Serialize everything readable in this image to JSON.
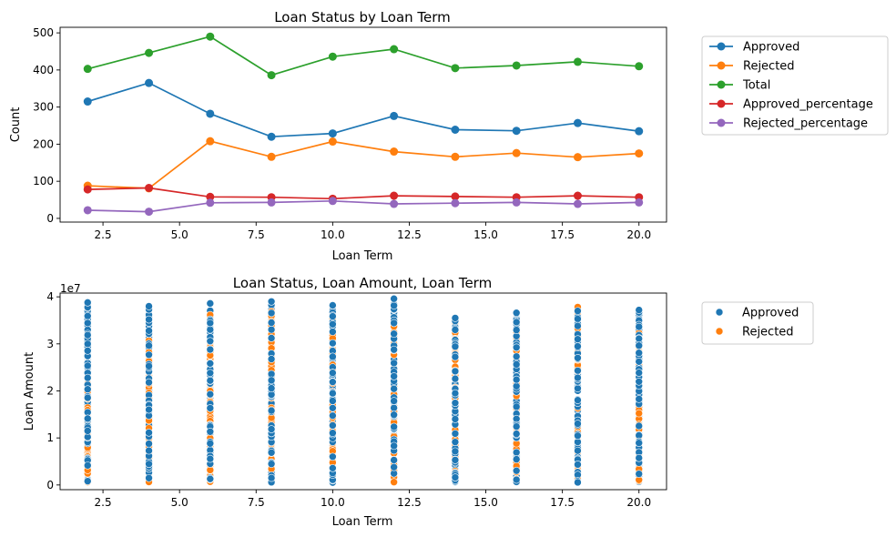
{
  "chart_data": [
    {
      "type": "line",
      "title": "Loan Status by Loan Term",
      "xlabel": "Loan Term",
      "ylabel": "Count",
      "xlim": [
        1.1,
        20.9
      ],
      "ylim": [
        -10,
        515
      ],
      "x_ticks": [
        2.5,
        5.0,
        7.5,
        10.0,
        12.5,
        15.0,
        17.5,
        20.0
      ],
      "x_tick_labels": [
        "2.5",
        "5.0",
        "7.5",
        "10.0",
        "12.5",
        "15.0",
        "17.5",
        "20.0"
      ],
      "y_ticks": [
        0,
        100,
        200,
        300,
        400,
        500
      ],
      "y_tick_labels": [
        "0",
        "100",
        "200",
        "300",
        "400",
        "500"
      ],
      "legend_position": "outside-right",
      "x": [
        2,
        4,
        6,
        8,
        10,
        12,
        14,
        16,
        18,
        20
      ],
      "series": [
        {
          "name": " Approved",
          "color": "#1f77b4",
          "values": [
            315,
            365,
            282,
            220,
            229,
            276,
            239,
            236,
            257,
            235
          ]
        },
        {
          "name": " Rejected",
          "color": "#ff7f0e",
          "values": [
            88,
            81,
            208,
            166,
            207,
            180,
            166,
            176,
            165,
            175
          ]
        },
        {
          "name": "Total",
          "color": "#2ca02c",
          "values": [
            403,
            446,
            490,
            386,
            436,
            456,
            405,
            412,
            422,
            410
          ]
        },
        {
          "name": "Approved_percentage",
          "color": "#d62728",
          "values": [
            78,
            82,
            58,
            57,
            53,
            61,
            59,
            57,
            61,
            57
          ]
        },
        {
          "name": "Rejected_percentage",
          "color": "#9467bd",
          "values": [
            22,
            18,
            42,
            43,
            47,
            39,
            41,
            43,
            39,
            43
          ]
        }
      ]
    },
    {
      "type": "scatter",
      "title": "Loan Status, Loan Amount, Loan Term",
      "xlabel": "Loan Term",
      "ylabel": "Loan Amount",
      "y_offset_label": "1e7",
      "xlim": [
        1.1,
        20.9
      ],
      "ylim": [
        -0.1,
        4.08
      ],
      "x_ticks": [
        2.5,
        5.0,
        7.5,
        10.0,
        12.5,
        15.0,
        17.5,
        20.0
      ],
      "x_tick_labels": [
        "2.5",
        "5.0",
        "7.5",
        "10.0",
        "12.5",
        "15.0",
        "17.5",
        "20.0"
      ],
      "y_ticks": [
        0,
        1,
        2,
        3,
        4
      ],
      "y_tick_labels": [
        "0",
        "1",
        "2",
        "3",
        "4"
      ],
      "legend_position": "outside-right",
      "columns": [
        {
          "x": 2,
          "approved_max": 3.88,
          "rejected_max": 2.3
        },
        {
          "x": 4,
          "approved_max": 3.8,
          "rejected_max": 3.3
        },
        {
          "x": 6,
          "approved_max": 3.86,
          "rejected_max": 3.7
        },
        {
          "x": 8,
          "approved_max": 3.9,
          "rejected_max": 3.8
        },
        {
          "x": 10,
          "approved_max": 3.82,
          "rejected_max": 3.7
        },
        {
          "x": 12,
          "approved_max": 3.96,
          "rejected_max": 3.5
        },
        {
          "x": 14,
          "approved_max": 3.55,
          "rejected_max": 3.72
        },
        {
          "x": 16,
          "approved_max": 3.66,
          "rejected_max": 3.3
        },
        {
          "x": 18,
          "approved_max": 3.7,
          "rejected_max": 3.8
        },
        {
          "x": 20,
          "approved_max": 3.72,
          "rejected_max": 3.3
        }
      ],
      "series": [
        {
          "name": " Approved",
          "color": "#1f77b4"
        },
        {
          "name": " Rejected",
          "color": "#ff7f0e"
        }
      ]
    }
  ]
}
